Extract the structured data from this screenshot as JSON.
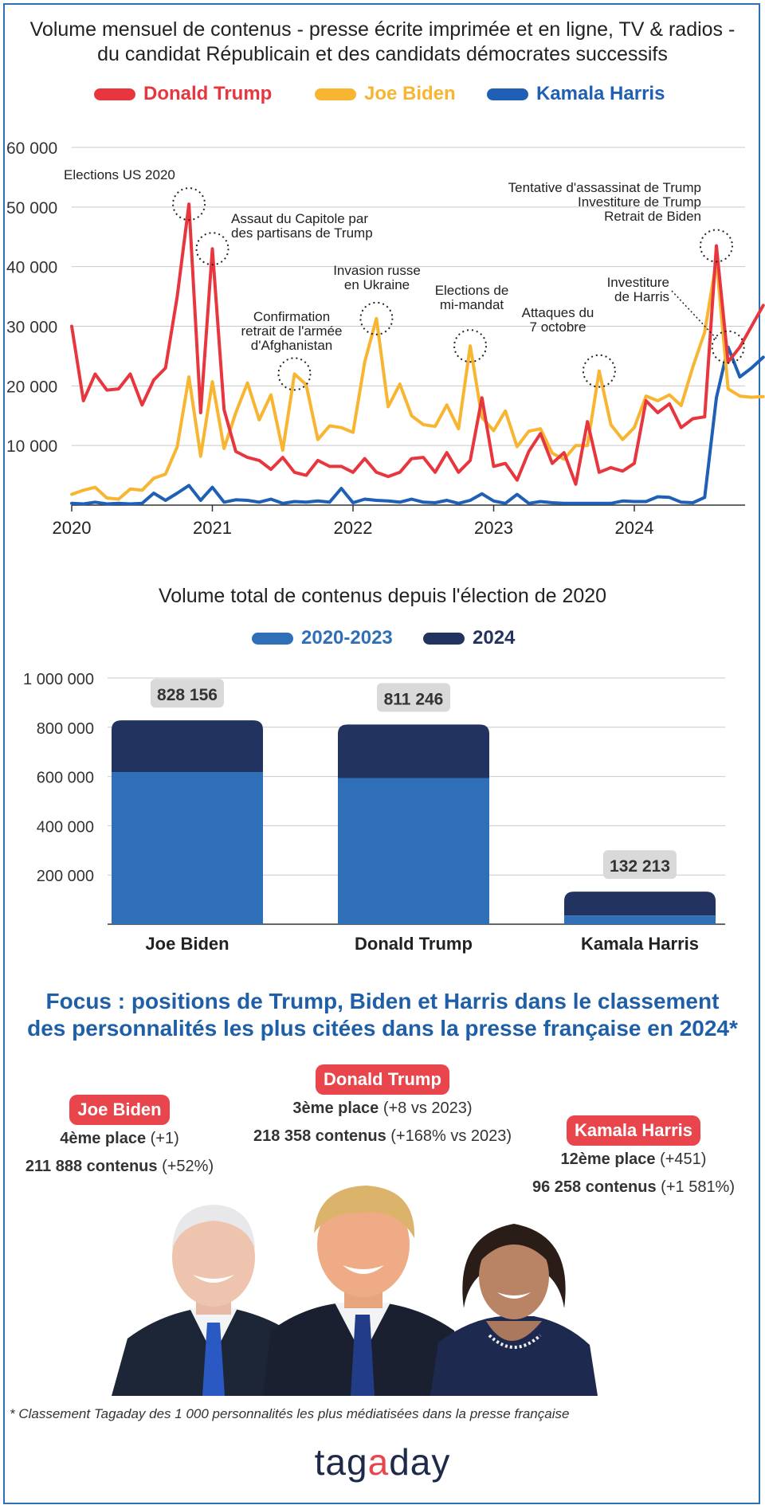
{
  "colors": {
    "trump": "#e8363f",
    "biden": "#f7b532",
    "harris": "#1f5fb5",
    "period1": "#2f6fb8",
    "period2": "#23335f",
    "accent": "#1f5fa8",
    "badge": "#e8464c"
  },
  "chart_data": [
    {
      "type": "line",
      "title": "Volume mensuel de contenus - presse écrite imprimée et en ligne, TV & radios - du candidat Républicain et des candidats démocrates successifs",
      "xlabel": "",
      "ylabel": "",
      "x_ticks": [
        "2020",
        "2021",
        "2022",
        "2023",
        "2024"
      ],
      "y_ticks": [
        "10 000",
        "20 000",
        "30 000",
        "40 000",
        "50 000",
        "60 000"
      ],
      "ylim": [
        0,
        60000
      ],
      "x_start": "2020-01",
      "grid": true,
      "legend_position": "top",
      "series": [
        {
          "name": "Donald Trump",
          "color": "#e8363f",
          "values": [
            30000,
            17500,
            22000,
            19300,
            19500,
            22000,
            16800,
            21000,
            23000,
            35000,
            50500,
            15500,
            43000,
            16000,
            9000,
            8000,
            7500,
            6000,
            8000,
            5500,
            5000,
            7500,
            6500,
            6500,
            5500,
            7800,
            5500,
            4800,
            5500,
            7800,
            8000,
            5500,
            8800,
            5500,
            7500,
            18000,
            6500,
            7000,
            4200,
            9000,
            12000,
            7000,
            8800,
            3500,
            14000,
            5500,
            6300,
            5700,
            7000,
            17500,
            15500,
            17000,
            13000,
            14500,
            14800,
            43500,
            24000,
            26500,
            30000,
            33500
          ]
        },
        {
          "name": "Joe Biden",
          "color": "#f7b532",
          "values": [
            1800,
            2500,
            3000,
            1200,
            1000,
            2700,
            2500,
            4500,
            5200,
            9800,
            21500,
            8200,
            20700,
            9500,
            15500,
            20500,
            14300,
            18500,
            9200,
            22000,
            20200,
            11000,
            13300,
            13000,
            12200,
            24000,
            31300,
            16500,
            20300,
            15000,
            13500,
            13200,
            16800,
            12800,
            26700,
            14700,
            12500,
            15800,
            9800,
            12400,
            12800,
            8700,
            7700,
            10000,
            10000,
            22500,
            13500,
            11000,
            13000,
            18300,
            17500,
            18500,
            16700,
            23200,
            29000,
            41000,
            19500,
            18300,
            18100,
            18200
          ]
        },
        {
          "name": "Kamala Harris",
          "color": "#1f5fb5",
          "values": [
            300,
            200,
            500,
            200,
            300,
            200,
            300,
            2000,
            800,
            2000,
            3300,
            800,
            3000,
            500,
            900,
            800,
            500,
            1000,
            300,
            600,
            500,
            700,
            500,
            2800,
            400,
            1000,
            800,
            700,
            500,
            1000,
            500,
            400,
            800,
            300,
            800,
            1900,
            700,
            300,
            1800,
            300,
            600,
            400,
            300,
            300,
            300,
            300,
            300,
            700,
            600,
            600,
            1400,
            1300,
            500,
            400,
            1300,
            18000,
            26500,
            21500,
            23000,
            24800
          ]
        }
      ],
      "annotations": [
        {
          "label": "Elections US 2020",
          "index": 10,
          "series": "Donald Trump"
        },
        {
          "label": "Assaut du Capitole par des partisans de Trump",
          "index": 12,
          "series": "Donald Trump"
        },
        {
          "label": "Confirmation retrait de l'armée d'Afghanistan",
          "index": 19,
          "series": "Joe Biden"
        },
        {
          "label": "Invasion russe en Ukraine",
          "index": 26,
          "series": "Joe Biden"
        },
        {
          "label": "Elections de mi-mandat",
          "index": 34,
          "series": "Joe Biden"
        },
        {
          "label": "Attaques du 7 octobre",
          "index": 45,
          "series": "Joe Biden"
        },
        {
          "label": "Tentative d'assassinat de Trump Investiture de Trump Retrait de Biden",
          "index": 55,
          "series": "Donald Trump"
        },
        {
          "label": "Investiture de Harris",
          "index": 56,
          "series": "Kamala Harris"
        }
      ]
    },
    {
      "type": "bar",
      "stacked": true,
      "title": "Volume total de contenus depuis l'élection de 2020",
      "categories": [
        "Joe Biden",
        "Donald Trump",
        "Kamala Harris"
      ],
      "series": [
        {
          "name": "2020-2023",
          "values": [
            618000,
            594000,
            35000
          ]
        },
        {
          "name": "2024",
          "values": [
            210156,
            217246,
            97213
          ]
        }
      ],
      "totals": [
        "828 156",
        "811 246",
        "132 213"
      ],
      "y_ticks": [
        "200 000",
        "400 000",
        "600 000",
        "800 000",
        "1 000 000"
      ],
      "ylim": [
        0,
        1000000
      ],
      "legend_position": "top"
    }
  ],
  "chart1": {
    "title_line1": "Volume mensuel de contenus - presse écrite imprimée et en ligne, TV & radios -",
    "title_line2": "du candidat Républicain et des candidats démocrates successifs",
    "legend": [
      "Donald Trump",
      "Joe Biden",
      "Kamala Harris"
    ],
    "annotation_lines": {
      "elections": [
        "Elections US 2020"
      ],
      "capitole": [
        "Assaut du Capitole par",
        "des partisans de Trump"
      ],
      "afghan": [
        "Confirmation",
        "retrait de l'armée",
        "d'Afghanistan"
      ],
      "ukraine": [
        "Invasion russe",
        "en Ukraine"
      ],
      "midterm": [
        "Elections de",
        "mi-mandat"
      ],
      "october": [
        "Attaques du",
        "7 octobre"
      ],
      "assassinat": [
        "Tentative d'assassinat de Trump",
        "Investiture de Trump",
        "Retrait de Biden"
      ],
      "harris": [
        "Investiture",
        "de Harris"
      ]
    }
  },
  "chart2": {
    "title": "Volume total de contenus depuis l'élection de 2020",
    "legend": [
      "2020-2023",
      "2024"
    ]
  },
  "focus": {
    "title_line1": "Focus : positions de Trump, Biden et Harris dans le classement",
    "title_line2": "des personnalités les plus citées dans la presse française en 2024*",
    "biden": {
      "name": "Joe Biden",
      "rank": "4ème place",
      "rank_delta": "(+1)",
      "contents": "211 888 contenus",
      "contents_delta": "(+52%)"
    },
    "trump": {
      "name": "Donald Trump",
      "rank": "3ème place",
      "rank_delta": "(+8 vs 2023)",
      "contents": "218 358 contenus",
      "contents_delta": "(+168% vs 2023)"
    },
    "harris": {
      "name": "Kamala Harris",
      "rank": "12ème place",
      "rank_delta": "(+451)",
      "contents": "96 258 contenus",
      "contents_delta": "(+1 581%)"
    }
  },
  "footnote": "* Classement Tagaday des 1 000 personnalités les plus médiatisées dans la presse française",
  "logo": {
    "pre": "tag",
    "mid": "a",
    "post": "day"
  }
}
